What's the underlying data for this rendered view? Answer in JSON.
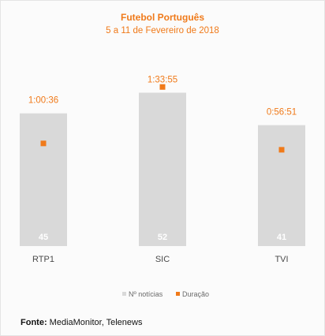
{
  "chart_data": {
    "type": "bar",
    "title": "Futebol Português",
    "subtitle": "5 a 11 de Fevereiro de 2018",
    "categories": [
      "RTP1",
      "SIC",
      "TVI"
    ],
    "series": [
      {
        "name": "Nº notícias",
        "values": [
          45,
          52,
          41
        ],
        "color": "#d9d9d9",
        "label_color": "#ffffff"
      },
      {
        "name": "Duração",
        "values": [
          "1:00:36",
          "1:33:55",
          "0:56:51"
        ],
        "seconds": [
          3636,
          5635,
          3411
        ],
        "color": "#f07a1a"
      }
    ],
    "count_axis": [
      0,
      60
    ],
    "duration_axis_seconds": [
      0,
      7200
    ],
    "legend_position": "bottom",
    "grid": false
  },
  "source": {
    "label": "Fonte:",
    "text": "MediaMonitor, Telenews"
  }
}
